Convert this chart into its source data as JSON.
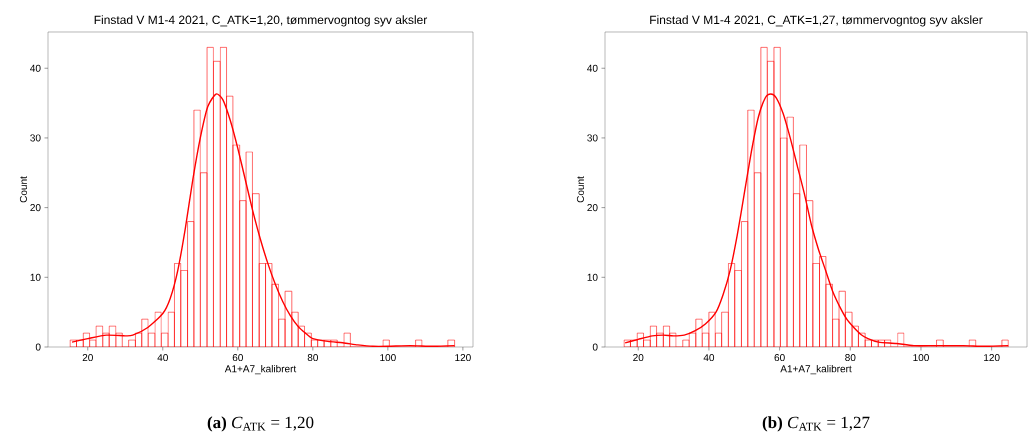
{
  "chart_data": [
    {
      "type": "histogram",
      "title": "Finstad V M1-4 2021, C_ATK=1,20, tømmervogntog syv aksler",
      "xlabel": "A1+A7_kalibrert",
      "ylabel": "Count",
      "xlim": [
        9.4,
        122.7
      ],
      "ylim": [
        0,
        45.2
      ],
      "xticks": [
        20,
        40,
        60,
        80,
        100,
        120
      ],
      "yticks": [
        0,
        10,
        20,
        30,
        40
      ],
      "annotations": [
        "**(a)** *C*$_{ATK}$ = 1,20"
      ],
      "series": [
        {
          "color": "#ff0000",
          "bins": [
            15.3,
            17.0,
            18.8,
            20.5,
            22.2,
            24.0,
            25.7,
            27.5,
            29.2,
            30.9,
            32.7,
            34.4,
            36.1,
            37.9,
            39.6,
            41.4,
            43.1,
            44.8,
            46.6,
            48.3,
            50.0,
            51.8,
            53.5,
            55.3,
            57.0,
            58.7,
            60.5,
            62.2,
            63.9,
            65.7,
            67.4,
            69.1,
            70.9,
            72.6,
            74.4,
            76.1,
            77.8,
            79.6,
            81.3,
            83.0,
            84.8,
            86.5,
            88.3,
            90.0,
            91.7,
            93.5,
            95.2,
            96.9,
            98.7,
            100.4,
            102.2,
            103.9,
            105.6,
            107.4,
            109.1,
            110.8,
            112.6,
            114.3,
            116.0,
            117.8
          ],
          "values": [
            1,
            1,
            2,
            1,
            3,
            2,
            3,
            2,
            0,
            1,
            2,
            4,
            2,
            5,
            2,
            5,
            12,
            11,
            18,
            34,
            25,
            43,
            41,
            43,
            36,
            29,
            21,
            28,
            22,
            12,
            12,
            9,
            4,
            8,
            5,
            3,
            2,
            1,
            1,
            1,
            1,
            0,
            2,
            0,
            0,
            0,
            0,
            0,
            1,
            0,
            0,
            0,
            0,
            1,
            0,
            0,
            0,
            0,
            1
          ]
        },
        {
          "type": "line",
          "color": "#ff0000",
          "x": [
            15.8,
            20,
            25,
            30,
            32,
            36,
            40,
            42,
            44,
            46,
            48,
            50,
            52,
            54.2,
            56,
            58,
            60,
            62,
            64,
            66,
            68,
            70,
            72,
            74,
            76,
            78,
            80,
            84,
            88,
            92,
            96,
            100,
            106,
            112,
            117.8
          ],
          "values": [
            0.7,
            1.2,
            1.7,
            1.6,
            1.7,
            2.8,
            4.8,
            7,
            11,
            17,
            24,
            30,
            34.5,
            36.3,
            35.5,
            32.5,
            28.5,
            24,
            19.5,
            15.5,
            12,
            9,
            6.5,
            4.5,
            3,
            2,
            1.2,
            0.8,
            0.6,
            0.3,
            0.1,
            0.1,
            0.2,
            0.1,
            0.2
          ]
        }
      ]
    },
    {
      "type": "histogram",
      "title": "Finstad V M1-4 2021, C_ATK=1,27, tømmervogntog syv aksler",
      "xlabel": "A1+A7_kalibrert",
      "ylabel": "Count",
      "xlim": [
        10.6,
        130
      ],
      "ylim": [
        0,
        45.2
      ],
      "xticks": [
        20,
        40,
        60,
        80,
        100,
        120
      ],
      "yticks": [
        0,
        10,
        20,
        30,
        40
      ],
      "annotations": [
        "**(b)** *C*$_{ATK}$ = 1,27"
      ],
      "series": [
        {
          "color": "#ff0000",
          "bins": [
            16.0,
            17.8,
            19.7,
            21.5,
            23.4,
            25.2,
            27.1,
            28.9,
            30.7,
            32.6,
            34.4,
            36.3,
            38.1,
            40.0,
            41.8,
            43.6,
            45.5,
            47.3,
            49.2,
            51.0,
            52.8,
            54.7,
            56.5,
            58.4,
            60.2,
            62.1,
            63.9,
            65.7,
            67.6,
            69.4,
            71.3,
            73.1,
            75.0,
            76.8,
            78.6,
            80.5,
            82.3,
            84.2,
            86.0,
            87.9,
            89.7,
            91.5,
            93.4,
            95.2,
            97.1,
            98.9,
            100.8,
            102.6,
            104.4,
            106.3,
            108.1,
            110.0,
            111.8,
            113.6,
            115.5,
            117.3,
            119.2,
            121.0,
            122.9,
            124.7
          ],
          "values": [
            1,
            1,
            2,
            1,
            3,
            2,
            3,
            2,
            0,
            1,
            2,
            4,
            2,
            5,
            2,
            5,
            12,
            11,
            18,
            34,
            25,
            43,
            41,
            43,
            30,
            33,
            22,
            29,
            21,
            12,
            13,
            9,
            4,
            8,
            5,
            3,
            2,
            1,
            1,
            1,
            1,
            0,
            2,
            0,
            0,
            0,
            0,
            0,
            1,
            0,
            0,
            0,
            0,
            1,
            0,
            0,
            0,
            0,
            1
          ]
        },
        {
          "type": "line",
          "color": "#ff0000",
          "x": [
            16.3,
            20,
            24,
            27,
            30,
            33,
            36,
            39,
            42,
            44,
            46,
            48,
            50,
            52,
            54,
            56,
            57.5,
            59,
            61,
            63,
            65,
            67,
            69,
            71,
            73,
            75,
            77,
            79,
            81,
            83,
            85,
            88,
            93,
            98,
            104,
            112,
            118,
            124.7
          ],
          "values": [
            0.6,
            1.1,
            1.6,
            1.7,
            1.6,
            1.7,
            2.3,
            3.3,
            5,
            7.5,
            11,
            16,
            22,
            28,
            33,
            35.8,
            36.3,
            35.8,
            33.5,
            30,
            26,
            22,
            17.5,
            14,
            11,
            8,
            5.8,
            4,
            2.8,
            1.8,
            1.2,
            0.7,
            0.5,
            0.2,
            0.2,
            0.2,
            0.1,
            0.2
          ]
        }
      ]
    }
  ]
}
